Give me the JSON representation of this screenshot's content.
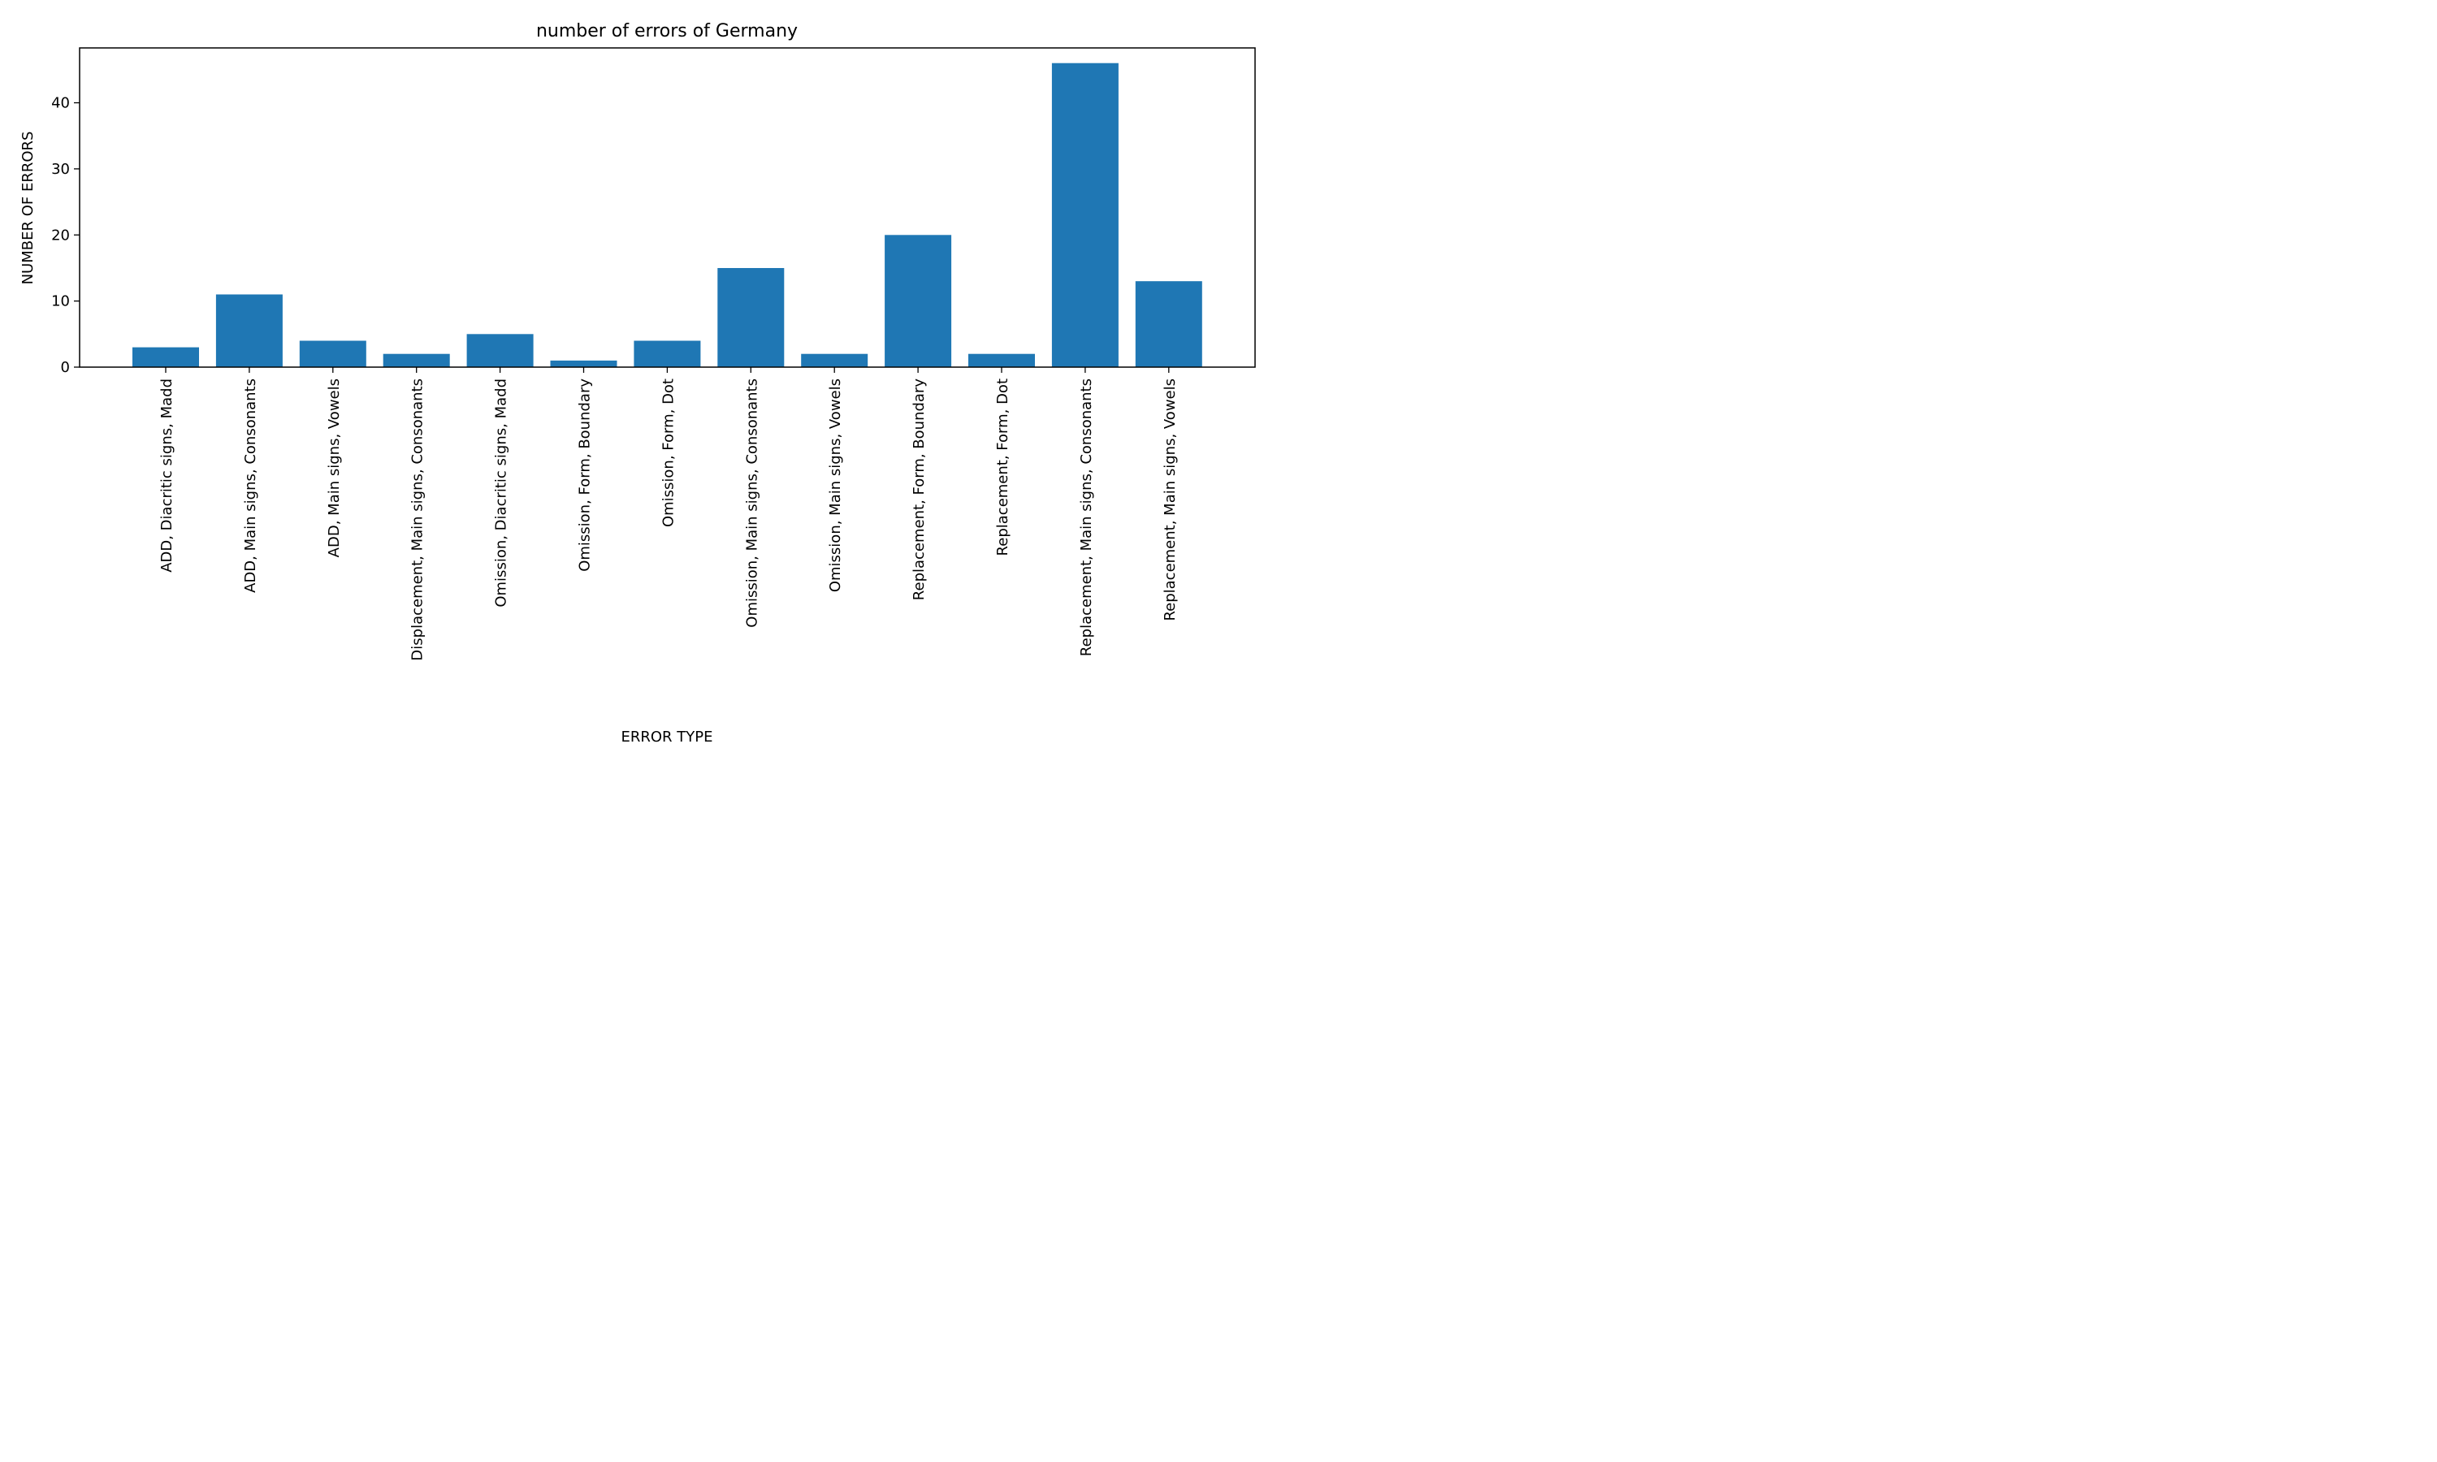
{
  "chart_data": {
    "type": "bar",
    "title": "number of errors of Germany",
    "xlabel": "ERROR TYPE",
    "ylabel": "NUMBER OF ERRORS",
    "categories": [
      "ADD, Diacritic signs, Madd",
      "ADD, Main signs, Consonants",
      "ADD, Main signs, Vowels",
      "Displacement, Main signs, Consonants",
      "Omission, Diacritic signs, Madd",
      "Omission, Form, Boundary",
      "Omission, Form, Dot",
      "Omission, Main signs, Consonants",
      "Omission, Main signs, Vowels",
      "Replacement, Form, Boundary",
      "Replacement, Form, Dot",
      "Replacement, Main signs, Consonants",
      "Replacement, Main signs, Vowels"
    ],
    "values": [
      3,
      11,
      4,
      2,
      5,
      1,
      4,
      15,
      2,
      20,
      2,
      46,
      13
    ],
    "ylim": [
      0,
      48.3
    ],
    "yticks": [
      0,
      10,
      20,
      30,
      40
    ],
    "grid": false,
    "bar_color": "#1f77b4"
  }
}
